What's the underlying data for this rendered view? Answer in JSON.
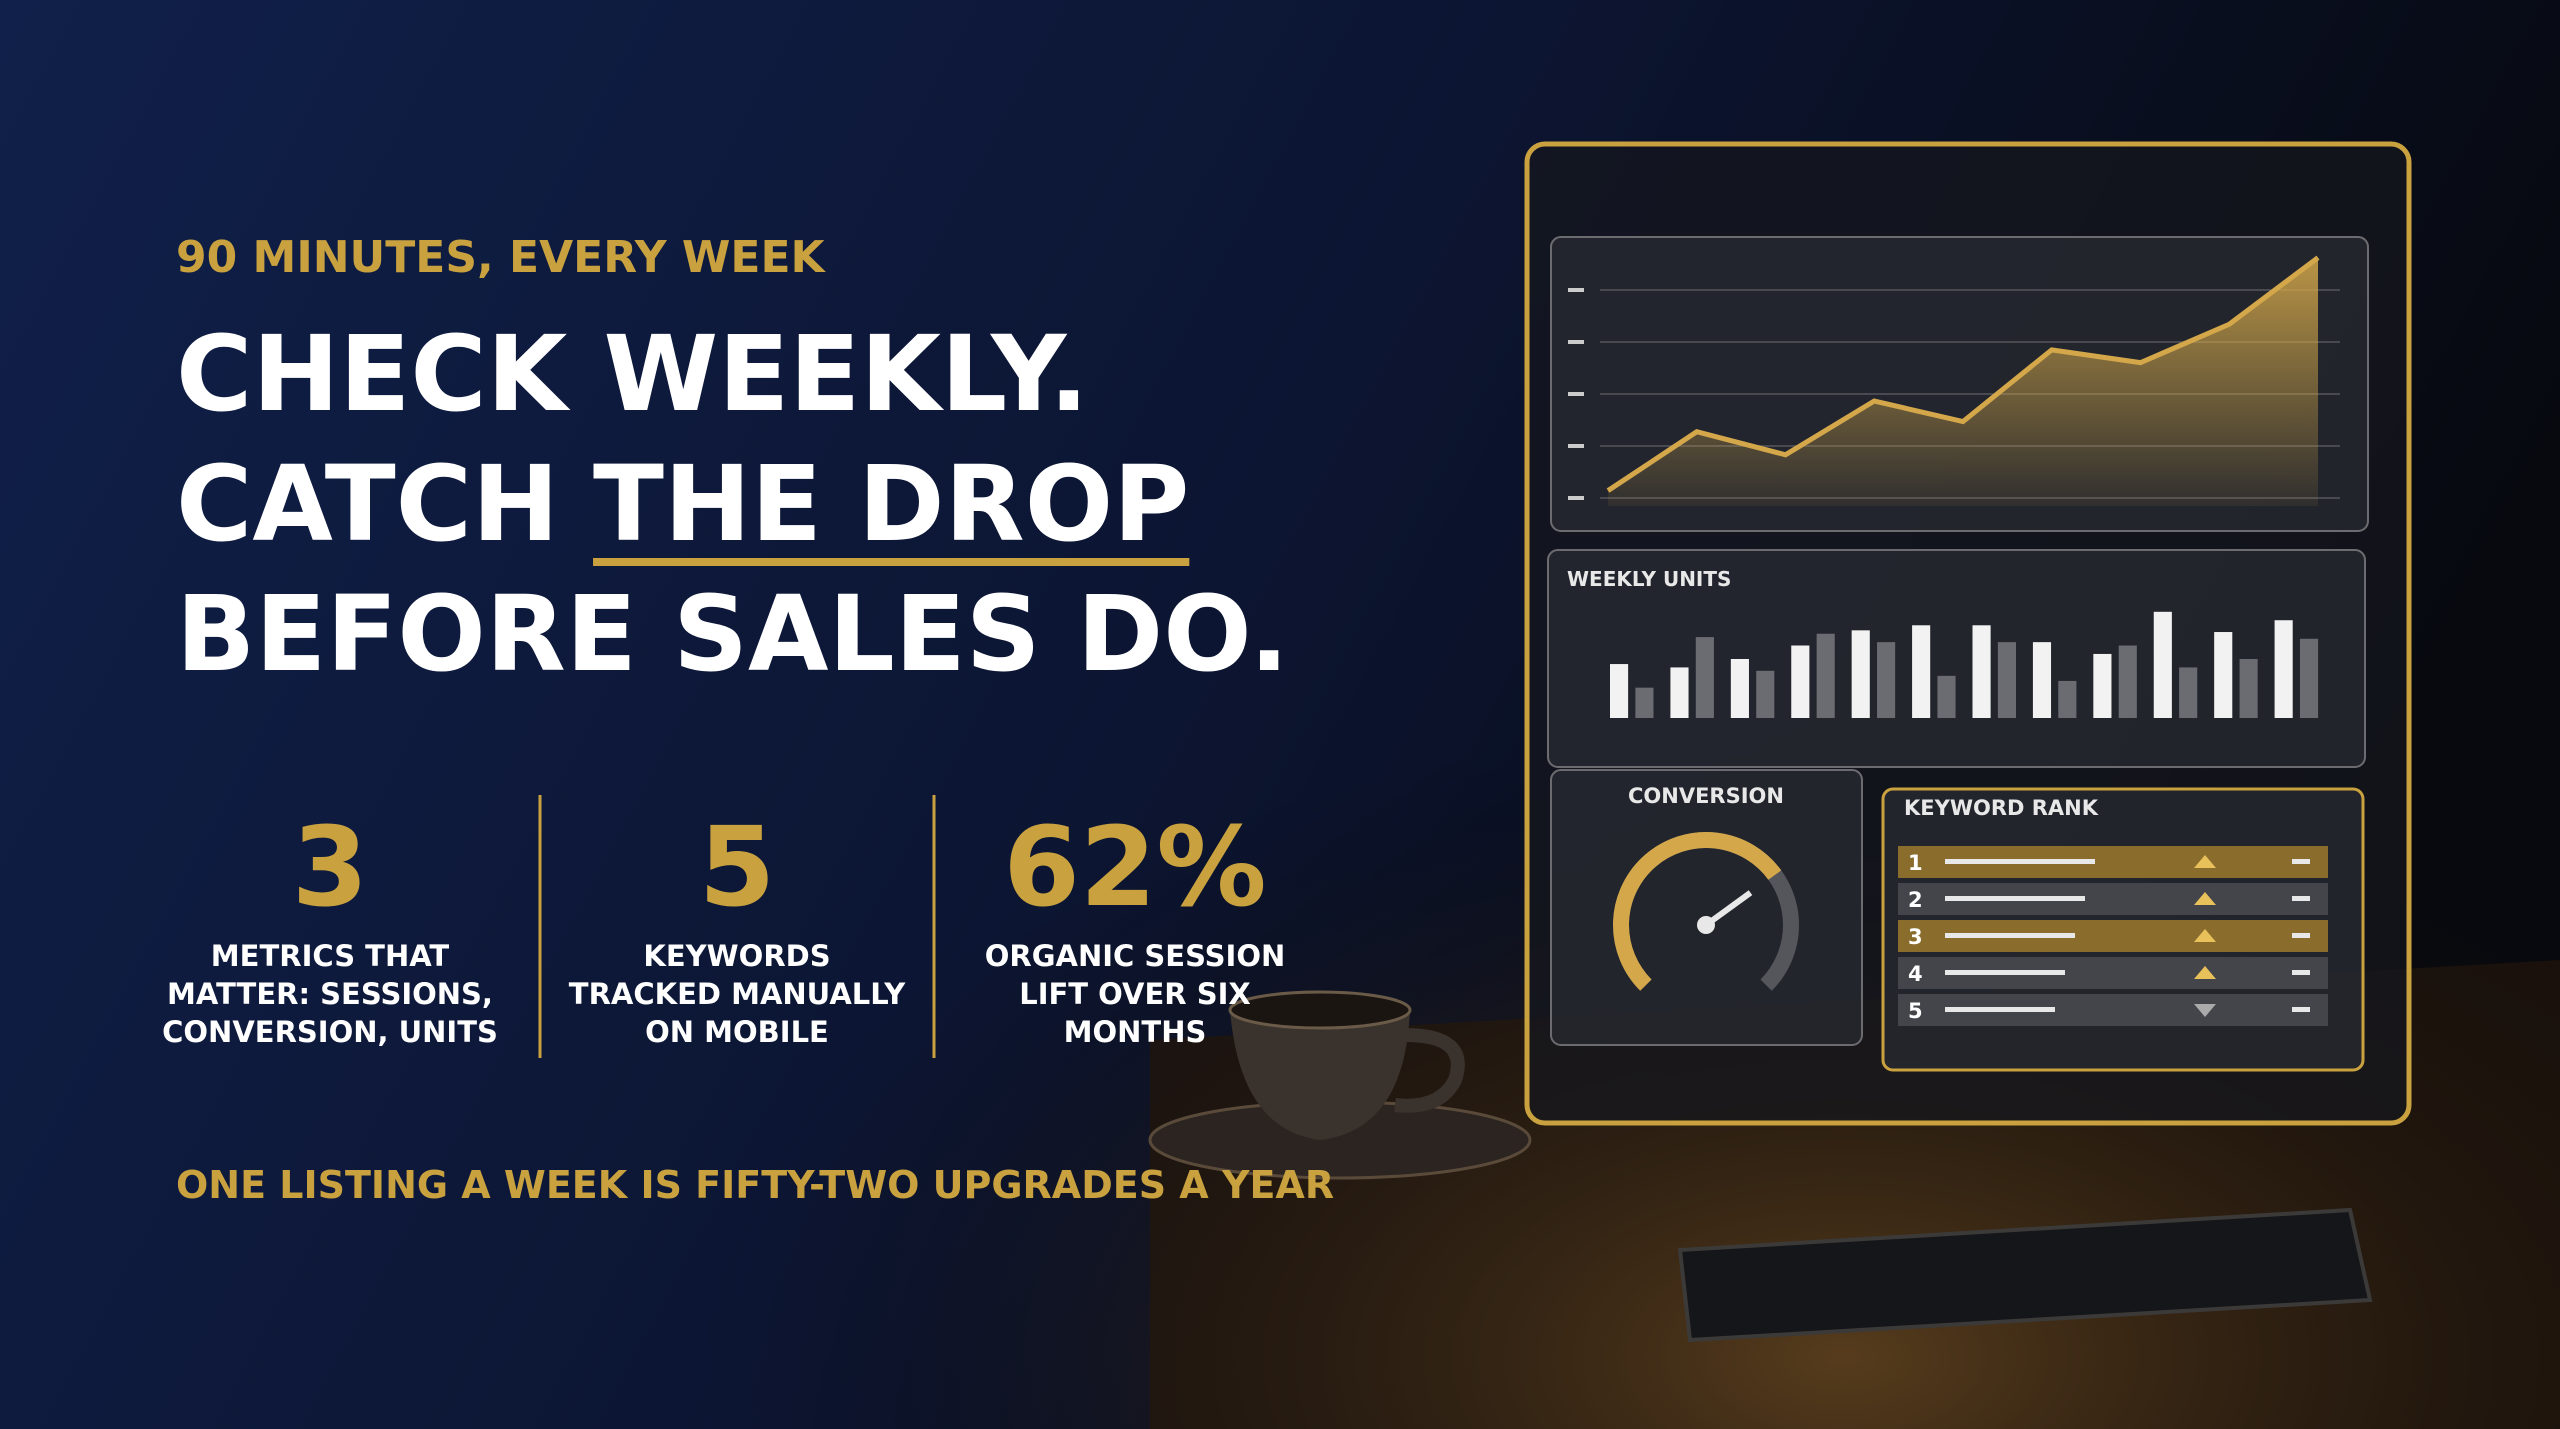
{
  "kicker": "90 MINUTES, EVERY WEEK",
  "headline": {
    "line1": "CHECK WEEKLY.",
    "line2_lead": "CATCH",
    "line2_underlined": "THE DROP",
    "line3": "BEFORE SALES DO."
  },
  "stats": [
    {
      "number": "3",
      "lines": [
        "METRICS THAT",
        "MATTER: SESSIONS,",
        "CONVERSION, UNITS"
      ]
    },
    {
      "number": "5",
      "lines": [
        "KEYWORDS",
        "TRACKED MANUALLY",
        "ON MOBILE"
      ]
    },
    {
      "number": "62%",
      "lines": [
        "ORGANIC SESSION",
        "LIFT OVER SIX",
        "MONTHS"
      ]
    }
  ],
  "footer": "ONE LISTING A WEEK IS FIFTY-TWO UPGRADES A YEAR",
  "dashboard": {
    "trend": {
      "values": [
        6,
        29,
        20,
        41,
        33,
        61,
        56,
        71,
        97
      ],
      "ylim": [
        0,
        100
      ],
      "color": "#d4a84a"
    },
    "units": {
      "title": "WEEKLY UNITS",
      "ylim": [
        0,
        70
      ],
      "series": [
        {
          "color": "#f2f2f2",
          "values": [
            32,
            30,
            35,
            43,
            52,
            55,
            55,
            45,
            38,
            63,
            51,
            58
          ]
        },
        {
          "color": "#6a6c72",
          "values": [
            18,
            48,
            28,
            50,
            45,
            25,
            45,
            22,
            43,
            30,
            35,
            47
          ]
        }
      ]
    },
    "conversion": {
      "title": "CONVERSION",
      "value": 70,
      "lim": [
        0,
        100
      ],
      "color": "#d4a84a"
    },
    "keyword_rank": {
      "title": "KEYWORD RANK",
      "ranks": [
        "1",
        "2",
        "3",
        "4",
        "5"
      ]
    }
  }
}
